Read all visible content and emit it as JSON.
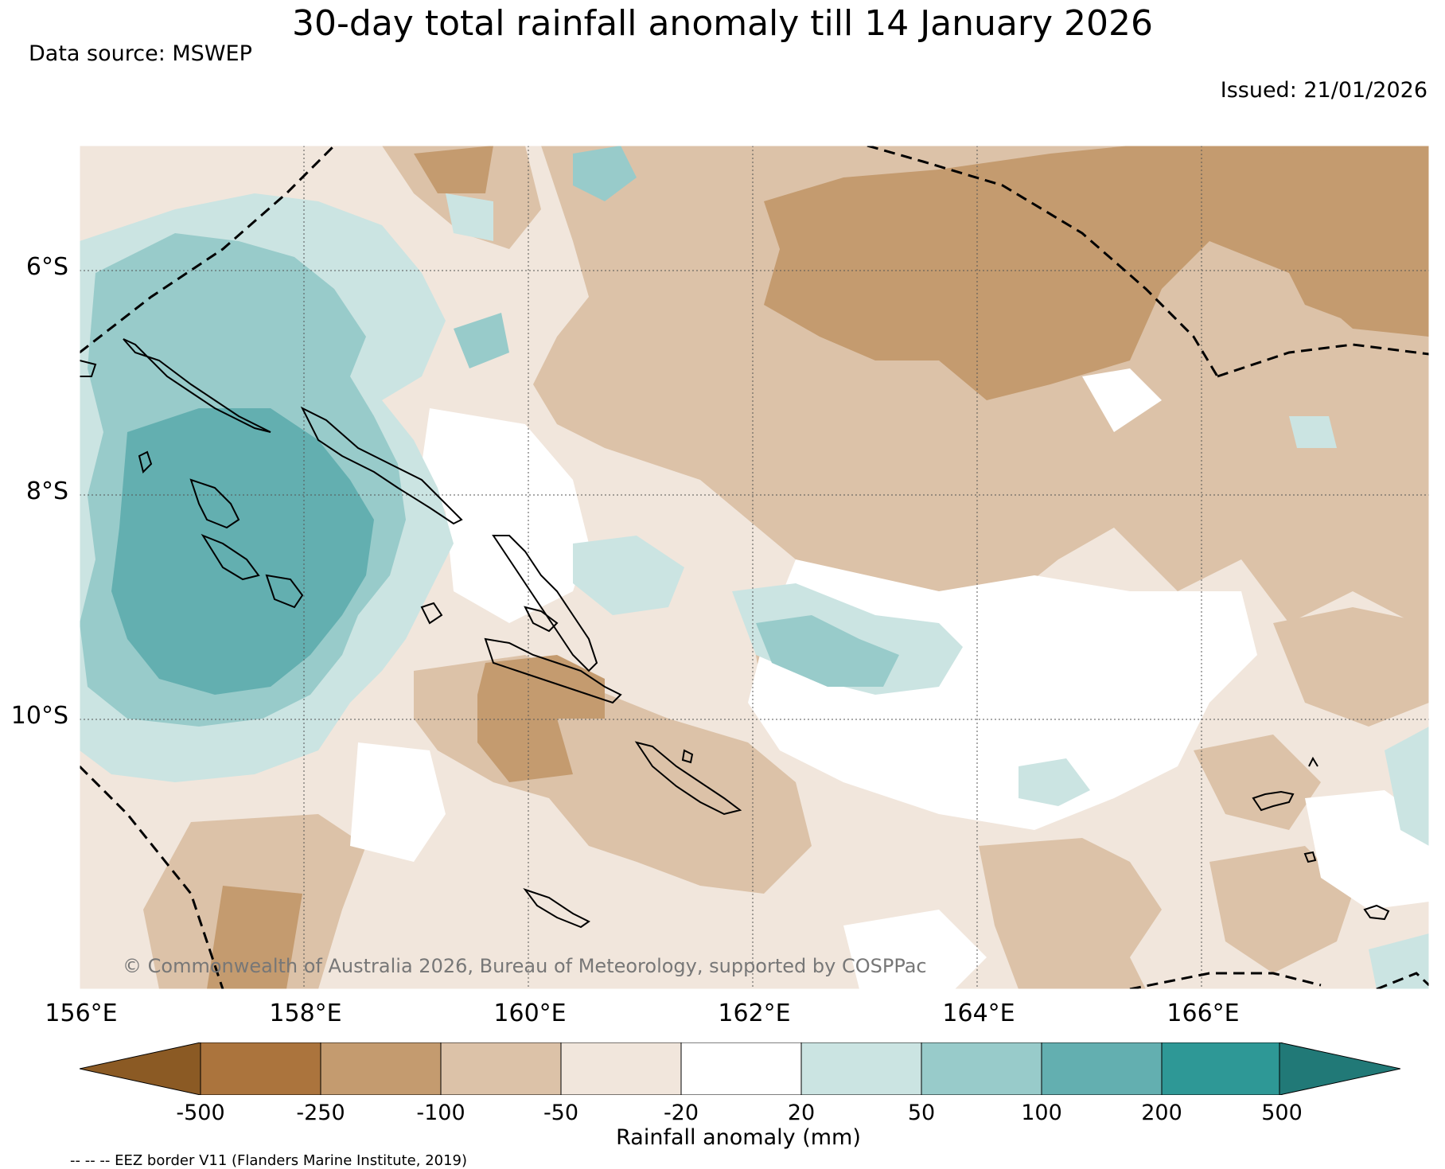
{
  "title": "30-day total rainfall anomaly till 14 January 2026",
  "data_source": "Data source: MSWEP",
  "issued": "Issued: 21/01/2026",
  "map": {
    "lat_labels": [
      "6°S",
      "8°S",
      "10°S"
    ],
    "lon_labels": [
      "156°E",
      "158°E",
      "160°E",
      "162°E",
      "164°E",
      "166°E"
    ],
    "copyright": "© Commonwealth of Australia 2026, Bureau of Meteorology, supported by COSPPac"
  },
  "colorbar": {
    "label": "Rainfall anomaly (mm)",
    "ticks": [
      "-500",
      "-250",
      "-100",
      "-50",
      "-20",
      "20",
      "50",
      "100",
      "200",
      "500"
    ],
    "colors": [
      "#8b5a24",
      "#ab743d",
      "#c49b6f",
      "#dcc2a8",
      "#f1e6dc",
      "#ffffff",
      "#cbe4e2",
      "#98cbca",
      "#63afb0",
      "#2e9896",
      "#217977"
    ]
  },
  "eez_note": "-- -- -- EEZ border V11 (Flanders Marine Institute, 2019)"
}
